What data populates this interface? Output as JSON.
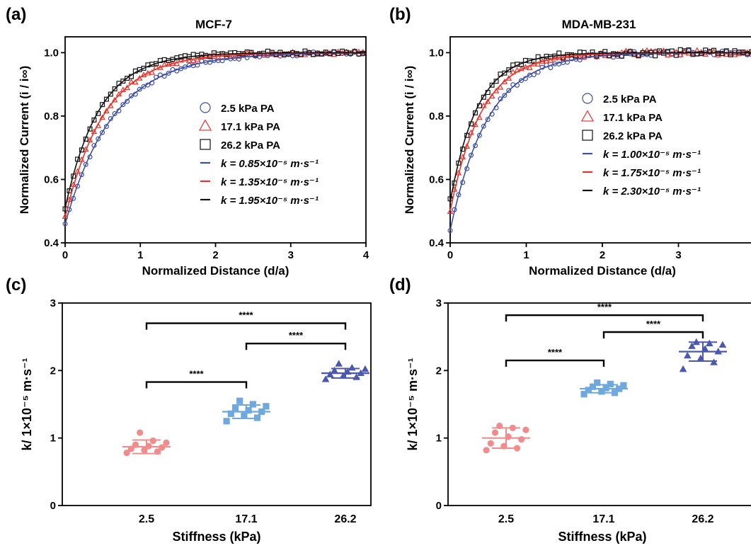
{
  "colors": {
    "blue": "#3b4fa8",
    "red": "#e8322a",
    "black": "#111111",
    "pink": "#f08c8c",
    "lightblue": "#6fa8dc",
    "darkblue": "#4a58b0"
  },
  "chart_data": [
    {
      "panel": "(a)",
      "type": "scatter",
      "title": "MCF-7",
      "xlabel": "Normalized Distance (d/a)",
      "ylabel": "Normalized Current (i / i∞)",
      "xlim": [
        0,
        4
      ],
      "ylim": [
        0.4,
        1.05
      ],
      "xticks": [
        "0",
        "1",
        "2",
        "3",
        "4"
      ],
      "yticks": [
        "0.4",
        "0.6",
        "0.8",
        "1.0"
      ],
      "legend_position": "center-right",
      "series": [
        {
          "name": "2.5 kPa PA",
          "marker": "circle",
          "color": "blue",
          "start": 0.46,
          "decay": 1.55,
          "noise": 0.006
        },
        {
          "name": "17.1 kPa PA",
          "marker": "triangle",
          "color": "red",
          "start": 0.48,
          "decay": 1.9,
          "noise": 0.006
        },
        {
          "name": "26.2 kPa PA",
          "marker": "square",
          "color": "black",
          "start": 0.51,
          "decay": 2.2,
          "noise": 0.006
        }
      ],
      "fits": [
        {
          "name": "k = 0.85×10⁻⁵ m·s⁻¹",
          "color": "blue"
        },
        {
          "name": "k = 1.35×10⁻⁵ m·s⁻¹",
          "color": "red"
        },
        {
          "name": "k = 1.95×10⁻⁵ m·s⁻¹",
          "color": "black"
        }
      ]
    },
    {
      "panel": "(b)",
      "type": "scatter",
      "title": "MDA-MB-231",
      "xlabel": "Normalized Distance (d/a)",
      "ylabel": "Normalized Current (i / i∞)",
      "xlim": [
        0,
        4
      ],
      "ylim": [
        0.4,
        1.05
      ],
      "xticks": [
        "0",
        "1",
        "2",
        "3",
        "4"
      ],
      "yticks": [
        "0.4",
        "0.6",
        "0.8",
        "1.0"
      ],
      "legend_position": "center-right",
      "series": [
        {
          "name": "2.5 kPa PA",
          "marker": "circle",
          "color": "blue",
          "start": 0.44,
          "decay": 2.0,
          "noise": 0.008
        },
        {
          "name": "17.1 kPa PA",
          "marker": "triangle",
          "color": "red",
          "start": 0.5,
          "decay": 2.4,
          "noise": 0.008
        },
        {
          "name": "26.2 kPa PA",
          "marker": "square",
          "color": "black",
          "start": 0.53,
          "decay": 2.8,
          "noise": 0.01
        }
      ],
      "fits": [
        {
          "name": "k = 1.00×10⁻⁵ m·s⁻¹",
          "color": "blue"
        },
        {
          "name": "k = 1.75×10⁻⁵ m·s⁻¹",
          "color": "red"
        },
        {
          "name": "k = 2.30×10⁻⁵ m·s⁻¹",
          "color": "black"
        }
      ]
    },
    {
      "panel": "(c)",
      "type": "scatter",
      "xlabel": "Stiffness (kPa)",
      "ylabel": "k/ 1×10⁻⁵ m·s⁻¹",
      "ylim": [
        0,
        3
      ],
      "yticks": [
        "0",
        "1",
        "2",
        "3"
      ],
      "categories": [
        "2.5",
        "17.1",
        "26.2"
      ],
      "groups": [
        {
          "category": "2.5",
          "marker": "circle",
          "color": "pink",
          "mean": 0.87,
          "sd": 0.1,
          "values": [
            0.78,
            0.8,
            0.82,
            0.84,
            0.86,
            0.88,
            0.9,
            0.93,
            0.96,
            1.08
          ]
        },
        {
          "category": "17.1",
          "marker": "square",
          "color": "lightblue",
          "mean": 1.39,
          "sd": 0.1,
          "values": [
            1.25,
            1.3,
            1.33,
            1.36,
            1.39,
            1.41,
            1.44,
            1.47,
            1.5,
            1.55
          ]
        },
        {
          "category": "26.2",
          "marker": "triangle",
          "color": "darkblue",
          "mean": 1.96,
          "sd": 0.07,
          "values": [
            1.87,
            1.9,
            1.92,
            1.94,
            1.96,
            1.98,
            2.0,
            2.02,
            2.04,
            2.1
          ]
        }
      ],
      "significance": [
        {
          "from": 0,
          "to": 1,
          "label": "****",
          "y": 1.83
        },
        {
          "from": 1,
          "to": 2,
          "label": "****",
          "y": 2.4
        },
        {
          "from": 0,
          "to": 2,
          "label": "****",
          "y": 2.7
        }
      ]
    },
    {
      "panel": "(d)",
      "type": "scatter",
      "xlabel": "Stiffness (kPa)",
      "ylabel": "k/ 1×10⁻⁵ m·s⁻¹",
      "ylim": [
        0,
        3
      ],
      "yticks": [
        "0",
        "1",
        "2",
        "3"
      ],
      "categories": [
        "2.5",
        "17.1",
        "26.2"
      ],
      "groups": [
        {
          "category": "2.5",
          "marker": "circle",
          "color": "pink",
          "mean": 1.0,
          "sd": 0.15,
          "values": [
            0.82,
            0.85,
            0.88,
            0.92,
            0.98,
            1.02,
            1.08,
            1.12,
            1.15,
            1.18
          ]
        },
        {
          "category": "17.1",
          "marker": "square",
          "color": "lightblue",
          "mean": 1.73,
          "sd": 0.06,
          "values": [
            1.65,
            1.67,
            1.69,
            1.71,
            1.73,
            1.74,
            1.76,
            1.78,
            1.8,
            1.82
          ]
        },
        {
          "category": "26.2",
          "marker": "triangle",
          "color": "darkblue",
          "mean": 2.28,
          "sd": 0.14,
          "values": [
            2.02,
            2.12,
            2.18,
            2.22,
            2.28,
            2.32,
            2.36,
            2.38,
            2.4,
            2.42
          ]
        }
      ],
      "significance": [
        {
          "from": 0,
          "to": 1,
          "label": "****",
          "y": 2.15
        },
        {
          "from": 1,
          "to": 2,
          "label": "****",
          "y": 2.57
        },
        {
          "from": 0,
          "to": 2,
          "label": "****",
          "y": 2.82
        }
      ]
    }
  ]
}
